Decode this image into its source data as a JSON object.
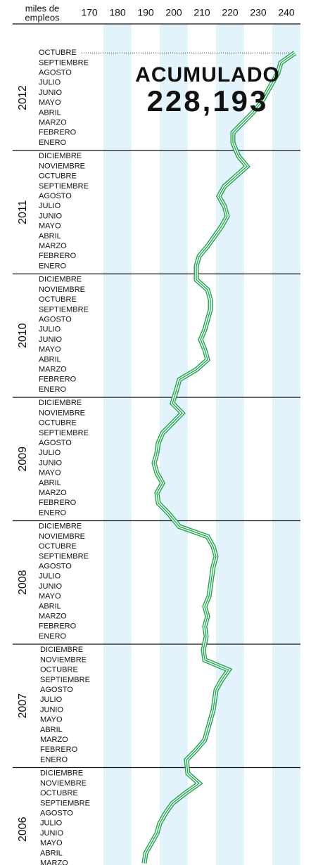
{
  "chart_data": {
    "type": "line",
    "x_label": [
      "miles de",
      "empleos"
    ],
    "xlim": [
      165,
      245
    ],
    "xticks": [
      170,
      180,
      190,
      200,
      210,
      220,
      230,
      240
    ],
    "shaded_ticks": [
      180,
      200,
      220,
      240
    ],
    "color": "#1aa64a",
    "band_color": "#e3f3fc",
    "annotation": [
      "ACUMULADO",
      "228,193"
    ],
    "groups": [
      {
        "name": "2012",
        "categories": [
          "OCTUBRE",
          "SEPTIEMBRE",
          "AGOSTO",
          "JULIO",
          "JUNIO",
          "MAYO",
          "ABRIL",
          "MARZO",
          "FEBRERO",
          "ENERO"
        ],
        "values": [
          243,
          238,
          237,
          235,
          233,
          231,
          228,
          224.5,
          221,
          221
        ]
      },
      {
        "name": "2011",
        "categories": [
          "DICIEMBRE",
          "NOVIEMBRE",
          "OCTUBRE",
          "SEPTIEMBRE",
          "AGOSTO",
          "JULIO",
          "JUNIO",
          "MAYO",
          "ABRIL",
          "MARZO",
          "FEBRERO",
          "ENERO"
        ],
        "values": [
          223,
          226,
          222,
          218,
          216,
          218,
          219,
          217,
          214.5,
          212,
          209,
          208
        ]
      },
      {
        "name": "2010",
        "categories": [
          "DICIEMBRE",
          "NOVIEMBRE",
          "OCTUBRE",
          "SEPTIEMBRE",
          "AGOSTO",
          "JULIO",
          "JUNIO",
          "MAYO",
          "ABRIL",
          "MARZO",
          "FEBRERO",
          "ENERO"
        ],
        "values": [
          208,
          212,
          213,
          213,
          212,
          211,
          209.5,
          211,
          212,
          208,
          202,
          201
        ]
      },
      {
        "name": "2009",
        "categories": [
          "DICIEMBRE",
          "NOVIEMBRE",
          "OCTUBRE",
          "SEPTIEMBRE",
          "AGOSTO",
          "JULIO",
          "JUNIO",
          "MAYO",
          "ABRIL",
          "MARZO",
          "FEBRERO",
          "ENERO"
        ],
        "values": [
          199.5,
          203,
          199.5,
          196,
          194.5,
          194,
          193,
          194,
          196,
          194,
          194.5,
          198
        ]
      },
      {
        "name": "2008",
        "categories": [
          "DICIEMBRE",
          "NOVIEMBRE",
          "OCTUBRE",
          "SEPTIEMBRE",
          "AGOSTO",
          "JULIO",
          "JUNIO",
          "MAYO",
          "ABRIL",
          "MARZO",
          "FEBRERO",
          "ENERO"
        ],
        "values": [
          202,
          212,
          214,
          215,
          214,
          213.5,
          213,
          212.5,
          211,
          212,
          211,
          211.5
        ]
      },
      {
        "name": "2007",
        "categories": [
          "DICIEMBRE",
          "NOVIEMBRE",
          "OCTUBRE",
          "SEPTIEMBRE",
          "AGOSTO",
          "JULIO",
          "JUNIO",
          "MAYO",
          "ABRIL",
          "MARZO",
          "FEBRERO",
          "ENERO"
        ],
        "values": [
          210.5,
          211,
          219.5,
          217,
          215,
          214.5,
          214,
          213,
          212,
          211,
          208,
          204.5
        ]
      },
      {
        "name": "2006",
        "categories": [
          "DICIEMBRE",
          "NOVIEMBRE",
          "OCTUBRE",
          "SEPTIEMBRE",
          "AGOSTO",
          "JULIO",
          "JUNIO",
          "MAYO",
          "ABRIL",
          "MARZO"
        ],
        "values": [
          205,
          209,
          204,
          199.5,
          197,
          195,
          194,
          192,
          190,
          189.5
        ]
      }
    ]
  }
}
